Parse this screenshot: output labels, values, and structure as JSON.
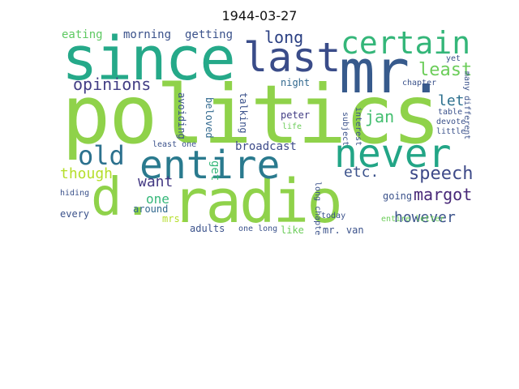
{
  "figure": {
    "title": "1944-03-27"
  },
  "words": {
    "w01": "politics",
    "w02": "since",
    "w03": "mr.",
    "w04": "d.",
    "w05": "radio",
    "w06": "last",
    "w07": "certain",
    "w08": "never",
    "w09": "entire",
    "w10": "old",
    "w11": "opinions",
    "w12": "speech",
    "w13": "margot",
    "w14": "though",
    "w15": "least",
    "w16": "long",
    "w17": "want",
    "w18": "etc.",
    "w19": "however",
    "w20": "jan",
    "w21": "let",
    "w22": "eating",
    "w23": "morning",
    "w24": "getting",
    "w25": "broadcast",
    "w26": "one",
    "w27": "around",
    "w28": "every",
    "w29": "mrs.",
    "w30": "adults",
    "w31": "like",
    "w32": "mr. van",
    "w33": "going",
    "w34": "peter",
    "w35": "night",
    "w36": "talking",
    "w37": "beloved",
    "w38": "avoiding",
    "w39": "get",
    "w40": "least one",
    "w41": "hiding",
    "w42": "one long",
    "w43": "life",
    "w44": "table",
    "w45": "yet",
    "w46": "chapter",
    "w47": "devote",
    "w48": "little",
    "w49": "interest",
    "w50": "subject",
    "w51": "long chapter",
    "w52": "entire letter",
    "w53": "many different",
    "w54": "today"
  }
}
